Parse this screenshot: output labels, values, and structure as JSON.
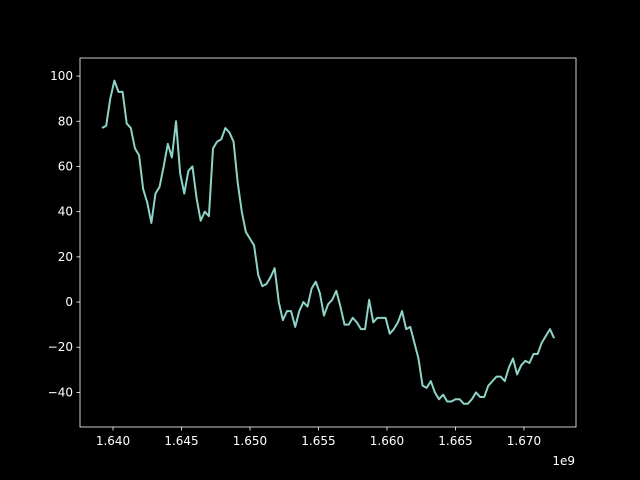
{
  "chart_data": {
    "type": "line",
    "x": [
      1639200000,
      1639500000,
      1639800000,
      1640100000,
      1640400000,
      1640700000,
      1641000000,
      1641300000,
      1641600000,
      1641900000,
      1642200000,
      1642500000,
      1642800000,
      1643100000,
      1643400000,
      1643700000,
      1644000000,
      1644300000,
      1644600000,
      1644900000,
      1645200000,
      1645500000,
      1645800000,
      1646100000,
      1646400000,
      1646700000,
      1647000000,
      1647300000,
      1647600000,
      1647900000,
      1648200000,
      1648500000,
      1648800000,
      1649100000,
      1649400000,
      1649700000,
      1650000000,
      1650300000,
      1650600000,
      1650900000,
      1651200000,
      1651500000,
      1651800000,
      1652100000,
      1652400000,
      1652700000,
      1653000000,
      1653300000,
      1653600000,
      1653900000,
      1654200000,
      1654500000,
      1654800000,
      1655100000,
      1655400000,
      1655700000,
      1656000000,
      1656300000,
      1656600000,
      1656900000,
      1657200000,
      1657500000,
      1657800000,
      1658100000,
      1658400000,
      1658700000,
      1659000000,
      1659300000,
      1659600000,
      1659900000,
      1660200000,
      1660500000,
      1660800000,
      1661100000,
      1661400000,
      1661700000,
      1662000000,
      1662300000,
      1662600000,
      1662900000,
      1663200000,
      1663500000,
      1663800000,
      1664100000,
      1664400000,
      1664700000,
      1665000000,
      1665300000,
      1665600000,
      1665900000,
      1666200000,
      1666500000,
      1666800000,
      1667100000,
      1667400000,
      1667700000,
      1668000000,
      1668300000,
      1668600000,
      1668900000,
      1669200000,
      1669500000,
      1669800000,
      1670100000,
      1670400000,
      1670700000,
      1671000000,
      1671300000,
      1671600000,
      1671900000,
      1672200000
    ],
    "series": [
      {
        "color": "#8dd3c7",
        "values": [
          77,
          78,
          90,
          98,
          93,
          93,
          79,
          77,
          68,
          65,
          50,
          44,
          35,
          48,
          51,
          60,
          70,
          64,
          80,
          57,
          48,
          58,
          60,
          46,
          36,
          40,
          38,
          68,
          71,
          72,
          77,
          75,
          71,
          53,
          40,
          31,
          28,
          25,
          12,
          7,
          8,
          11,
          15,
          0,
          -8,
          -4,
          -4,
          -11,
          -4,
          0,
          -2,
          6,
          9,
          4,
          -6,
          -1,
          1,
          5,
          -2,
          -10,
          -10,
          -7,
          -9,
          -12,
          -12,
          1,
          -9,
          -7,
          -7,
          -7,
          -14,
          -12,
          -9,
          -4,
          -12,
          -11,
          -18,
          -25,
          -37,
          -38,
          -35,
          -40,
          -43,
          -41,
          -44,
          -44,
          -43,
          -43,
          -45,
          -45,
          -43,
          -40,
          -42,
          -42,
          -37,
          -35,
          -33,
          -33,
          -35,
          -29,
          -25,
          -32,
          -28,
          -26,
          -27,
          -23,
          -23,
          -18,
          -15,
          -12,
          -16
        ]
      }
    ],
    "xlim": [
      1637590000,
      1673800000
    ],
    "ylim": [
      -55.3,
      108.0
    ],
    "xticks": [
      {
        "value": 1640000000,
        "label": "1.640"
      },
      {
        "value": 1645000000,
        "label": "1.645"
      },
      {
        "value": 1650000000,
        "label": "1.650"
      },
      {
        "value": 1655000000,
        "label": "1.655"
      },
      {
        "value": 1660000000,
        "label": "1.660"
      },
      {
        "value": 1665000000,
        "label": "1.665"
      },
      {
        "value": 1670000000,
        "label": "1.670"
      }
    ],
    "yticks": [
      {
        "value": -40,
        "label": "−40"
      },
      {
        "value": -20,
        "label": "−20"
      },
      0,
      20,
      40,
      60,
      80,
      100
    ],
    "x_offset_label": "1e9"
  }
}
